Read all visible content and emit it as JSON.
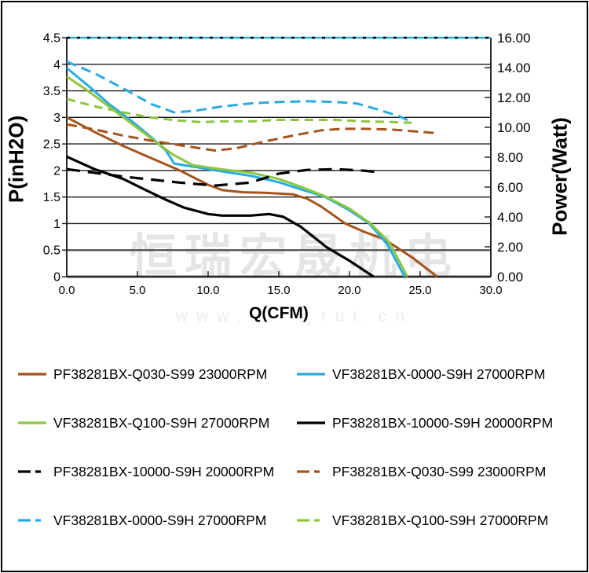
{
  "watermark": {
    "line1": "恒瑞宏晟机电",
    "line2": "www.hengrui.cn"
  },
  "chart_data": {
    "type": "line",
    "title": "",
    "xlabel": "Q(CFM)",
    "ylabel_left": "P(inH2O)",
    "ylabel_right": "Power(Watt)",
    "grid": true,
    "x_axis": {
      "min": 0,
      "max": 30,
      "tick_labels": [
        "0.0",
        "5.0",
        "10.0",
        "15.0",
        "20.0",
        "25.0",
        "30.0"
      ]
    },
    "y_left": {
      "min": 0,
      "max": 4.5,
      "tick_labels": [
        "4.5",
        "4",
        "3.5",
        "3",
        "2.5",
        "2",
        "1.5",
        "1",
        "0.5",
        "0"
      ]
    },
    "y_right": {
      "min": 0,
      "max": 16,
      "tick_labels": [
        "16.00",
        "14.00",
        "12.00",
        "10.00",
        "8.00",
        "6.00",
        "4.00",
        "2.00",
        "0.00"
      ]
    },
    "series": [
      {
        "name": "power-limit-line",
        "axis": "right",
        "color": "#29ABE2",
        "dash": null,
        "width": 2.4,
        "points": [
          [
            0,
            16
          ],
          [
            30,
            16
          ]
        ]
      },
      {
        "name": "power-limit-line-dotted",
        "axis": "right",
        "color": "#000000",
        "dash": "4,9",
        "width": 2.4,
        "points": [
          [
            0,
            16
          ],
          [
            30,
            16
          ]
        ]
      },
      {
        "name": "PF38281BX-Q030-S99 23000RPM PQ",
        "axis": "left",
        "color": "#A6531C",
        "dash": null,
        "width": 3,
        "points": [
          [
            0,
            3.0
          ],
          [
            2,
            2.72
          ],
          [
            4,
            2.46
          ],
          [
            6,
            2.23
          ],
          [
            8,
            2.0
          ],
          [
            10,
            1.73
          ],
          [
            11,
            1.63
          ],
          [
            12.5,
            1.59
          ],
          [
            14,
            1.58
          ],
          [
            16,
            1.55
          ],
          [
            17,
            1.47
          ],
          [
            18,
            1.32
          ],
          [
            19.7,
            1.0
          ],
          [
            21,
            0.85
          ],
          [
            22.5,
            0.7
          ],
          [
            24.5,
            0.35
          ],
          [
            26.2,
            0
          ]
        ]
      },
      {
        "name": "VF38281BX-0000-S9H 27000RPM PQ",
        "axis": "left",
        "color": "#29ABE2",
        "dash": null,
        "width": 3,
        "points": [
          [
            0,
            3.93
          ],
          [
            1.5,
            3.6
          ],
          [
            3,
            3.25
          ],
          [
            4.5,
            2.95
          ],
          [
            6,
            2.62
          ],
          [
            7,
            2.38
          ],
          [
            7.6,
            2.13
          ],
          [
            9,
            2.07
          ],
          [
            11,
            1.98
          ],
          [
            13,
            1.9
          ],
          [
            15,
            1.78
          ],
          [
            16.5,
            1.65
          ],
          [
            18.3,
            1.5
          ],
          [
            20,
            1.25
          ],
          [
            21.4,
            1.0
          ],
          [
            22.7,
            0.6
          ],
          [
            23.9,
            0
          ]
        ]
      },
      {
        "name": "VF38281BX-Q100-S9H 27000RPM PQ",
        "axis": "left",
        "color": "#8DC63F",
        "dash": null,
        "width": 3,
        "points": [
          [
            0,
            3.77
          ],
          [
            1.5,
            3.5
          ],
          [
            3,
            3.2
          ],
          [
            4.5,
            2.9
          ],
          [
            6,
            2.6
          ],
          [
            7.5,
            2.3
          ],
          [
            8.9,
            2.1
          ],
          [
            11,
            2.02
          ],
          [
            13,
            1.96
          ],
          [
            15,
            1.84
          ],
          [
            16.5,
            1.7
          ],
          [
            18.4,
            1.5
          ],
          [
            20,
            1.28
          ],
          [
            21.5,
            1.0
          ],
          [
            22.8,
            0.65
          ],
          [
            24.1,
            0
          ]
        ]
      },
      {
        "name": "PF38281BX-10000-S9H 20000RPM PQ",
        "axis": "left",
        "color": "#000000",
        "dash": null,
        "width": 3.2,
        "points": [
          [
            0,
            2.26
          ],
          [
            2,
            2.02
          ],
          [
            4,
            1.84
          ],
          [
            5.6,
            1.63
          ],
          [
            7,
            1.45
          ],
          [
            8.3,
            1.3
          ],
          [
            10,
            1.18
          ],
          [
            11,
            1.15
          ],
          [
            13,
            1.15
          ],
          [
            14.3,
            1.18
          ],
          [
            15.3,
            1.13
          ],
          [
            16.5,
            0.95
          ],
          [
            18.4,
            0.55
          ],
          [
            20,
            0.3
          ],
          [
            21.7,
            0
          ]
        ]
      },
      {
        "name": "PF38281BX-10000-S9H 20000RPM power",
        "axis": "right",
        "color": "#000000",
        "dash": "17,10",
        "width": 3.2,
        "points": [
          [
            0,
            7.2
          ],
          [
            2,
            6.95
          ],
          [
            4,
            6.7
          ],
          [
            6,
            6.5
          ],
          [
            8,
            6.3
          ],
          [
            10.5,
            6.1
          ],
          [
            13,
            6.3
          ],
          [
            15,
            6.9
          ],
          [
            17,
            7.15
          ],
          [
            19,
            7.2
          ],
          [
            21,
            7.1
          ],
          [
            22,
            7.0
          ]
        ]
      },
      {
        "name": "PF38281BX-Q030-S99 23000RPM power",
        "axis": "right",
        "color": "#A6531C",
        "dash": "13,7",
        "width": 3,
        "points": [
          [
            0,
            10.2
          ],
          [
            2,
            9.85
          ],
          [
            4,
            9.45
          ],
          [
            6,
            9.1
          ],
          [
            8,
            8.8
          ],
          [
            10.5,
            8.45
          ],
          [
            12,
            8.6
          ],
          [
            14,
            9.05
          ],
          [
            16,
            9.45
          ],
          [
            18,
            9.8
          ],
          [
            19.5,
            9.9
          ],
          [
            21,
            9.9
          ],
          [
            23,
            9.85
          ],
          [
            25,
            9.7
          ],
          [
            26.3,
            9.6
          ]
        ]
      },
      {
        "name": "VF38281BX-0000-S9H 27000RPM power",
        "axis": "right",
        "color": "#29ABE2",
        "dash": "13,7",
        "width": 3,
        "points": [
          [
            0,
            14.4
          ],
          [
            2,
            13.6
          ],
          [
            4,
            12.6
          ],
          [
            6,
            11.55
          ],
          [
            7.6,
            11.0
          ],
          [
            9,
            11.1
          ],
          [
            11,
            11.4
          ],
          [
            13,
            11.6
          ],
          [
            15,
            11.7
          ],
          [
            17,
            11.75
          ],
          [
            19,
            11.7
          ],
          [
            20.5,
            11.6
          ],
          [
            22,
            11.2
          ],
          [
            23.5,
            10.75
          ],
          [
            24.3,
            10.4
          ]
        ]
      },
      {
        "name": "VF38281BX-Q100-S9H 27000RPM power",
        "axis": "right",
        "color": "#8DC63F",
        "dash": "11,7",
        "width": 3,
        "points": [
          [
            0,
            11.9
          ],
          [
            2,
            11.4
          ],
          [
            4,
            11.0
          ],
          [
            6,
            10.65
          ],
          [
            8,
            10.45
          ],
          [
            9.5,
            10.35
          ],
          [
            11,
            10.4
          ],
          [
            13,
            10.4
          ],
          [
            15,
            10.5
          ],
          [
            17,
            10.5
          ],
          [
            19,
            10.5
          ],
          [
            21,
            10.4
          ],
          [
            23,
            10.35
          ],
          [
            24.4,
            10.3
          ]
        ]
      }
    ],
    "legend": [
      {
        "label": "PF38281BX-Q030-S99 23000RPM",
        "color": "#A6531C",
        "style": "solid"
      },
      {
        "label": "VF38281BX-0000-S9H 27000RPM",
        "color": "#29ABE2",
        "style": "solid"
      },
      {
        "label": "VF38281BX-Q100-S9H 27000RPM",
        "color": "#8DC63F",
        "style": "solid"
      },
      {
        "label": "PF38281BX-10000-S9H 20000RPM",
        "color": "#000000",
        "style": "solid"
      },
      {
        "label": "PF38281BX-10000-S9H 20000RPM",
        "color": "#000000",
        "style": "dashed"
      },
      {
        "label": "PF38281BX-Q030-S99 23000RPM",
        "color": "#A6531C",
        "style": "dashed"
      },
      {
        "label": "VF38281BX-0000-S9H 27000RPM",
        "color": "#29ABE2",
        "style": "dashed"
      },
      {
        "label": "VF38281BX-Q100-S9H 27000RPM",
        "color": "#8DC63F",
        "style": "dashed"
      }
    ]
  }
}
